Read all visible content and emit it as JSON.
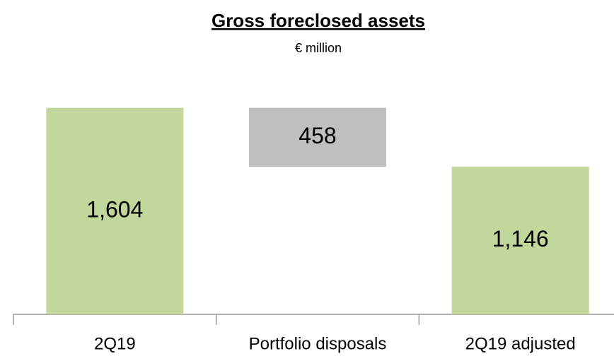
{
  "chart_data": {
    "type": "waterfall",
    "title": "Gross foreclosed assets",
    "subtitle": "€ million",
    "categories": [
      "2Q19",
      "Portfolio disposals",
      "2Q19 adjusted"
    ],
    "values": [
      1604,
      -458,
      1146
    ],
    "value_labels": [
      "1,604",
      "458",
      "1,146"
    ],
    "measure": [
      "absolute",
      "relative",
      "total"
    ],
    "colors": [
      "#c3d69b",
      "#bfbfbf",
      "#c3d69b"
    ],
    "ylim": [
      0,
      1750
    ]
  }
}
